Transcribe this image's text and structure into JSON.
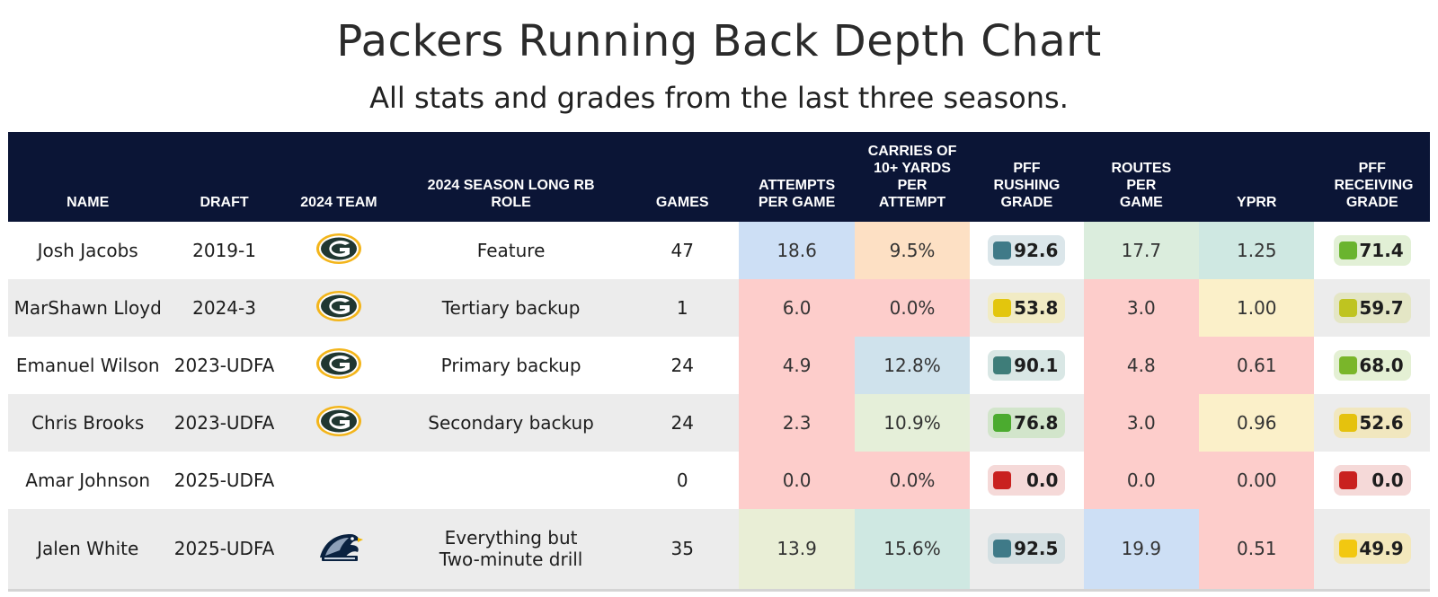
{
  "title": "Packers Running Back Depth Chart",
  "subtitle": "All stats and grades from the last three seasons.",
  "columns": [
    "NAME",
    "DRAFT",
    "2024 TEAM",
    "2024 SEASON LONG RB ROLE",
    "GAMES",
    "ATTEMPTS PER GAME",
    "CARRIES OF 10+ YARDS PER ATTEMPT",
    "PFF RUSHING GRADE",
    "ROUTES PER GAME",
    "YPRR",
    "PFF RECEIVING GRADE"
  ],
  "rows": [
    {
      "name": "Josh Jacobs",
      "draft": "2019-1",
      "team_logo": "packers-logo",
      "role": "Feature",
      "games": "47",
      "att": "18.6",
      "carries10": "9.5%",
      "rush": "92.6",
      "rush_color": "#3f7a88",
      "routes": "17.7",
      "yprr": "1.25",
      "recv": "71.4",
      "recv_color": "#6ab42e"
    },
    {
      "name": "MarShawn Lloyd",
      "draft": "2024-3",
      "team_logo": "packers-logo",
      "role": "Tertiary backup",
      "games": "1",
      "att": "6.0",
      "carries10": "0.0%",
      "rush": "53.8",
      "rush_color": "#e3c60d",
      "routes": "3.0",
      "yprr": "1.00",
      "recv": "59.7",
      "recv_color": "#bfc420"
    },
    {
      "name": "Emanuel Wilson",
      "draft": "2023-UDFA",
      "team_logo": "packers-logo",
      "role": "Primary backup",
      "games": "24",
      "att": "4.9",
      "carries10": "12.8%",
      "rush": "90.1",
      "rush_color": "#3e7d79",
      "routes": "4.8",
      "yprr": "0.61",
      "recv": "68.0",
      "recv_color": "#7ab62a"
    },
    {
      "name": "Chris Brooks",
      "draft": "2023-UDFA",
      "team_logo": "packers-logo",
      "role": "Secondary backup",
      "games": "24",
      "att": "2.3",
      "carries10": "10.9%",
      "rush": "76.8",
      "rush_color": "#4bab2f",
      "routes": "3.0",
      "yprr": "0.96",
      "recv": "52.6",
      "recv_color": "#e5c20d"
    },
    {
      "name": "Amar Johnson",
      "draft": "2025-UDFA",
      "team_logo": "",
      "role": "",
      "games": "0",
      "att": "0.0",
      "carries10": "0.0%",
      "rush": "0.0",
      "rush_color": "#c9211f",
      "routes": "0.0",
      "yprr": "0.00",
      "recv": "0.0",
      "recv_color": "#c9211f"
    },
    {
      "name": "Jalen White",
      "draft": "2025-UDFA",
      "team_logo": "georgia-southern-logo",
      "role": "Everything but Two-minute drill",
      "games": "35",
      "att": "13.9",
      "carries10": "15.6%",
      "rush": "92.5",
      "rush_color": "#3f7a88",
      "routes": "19.9",
      "yprr": "0.51",
      "recv": "49.9",
      "recv_color": "#f2c811"
    }
  ]
}
